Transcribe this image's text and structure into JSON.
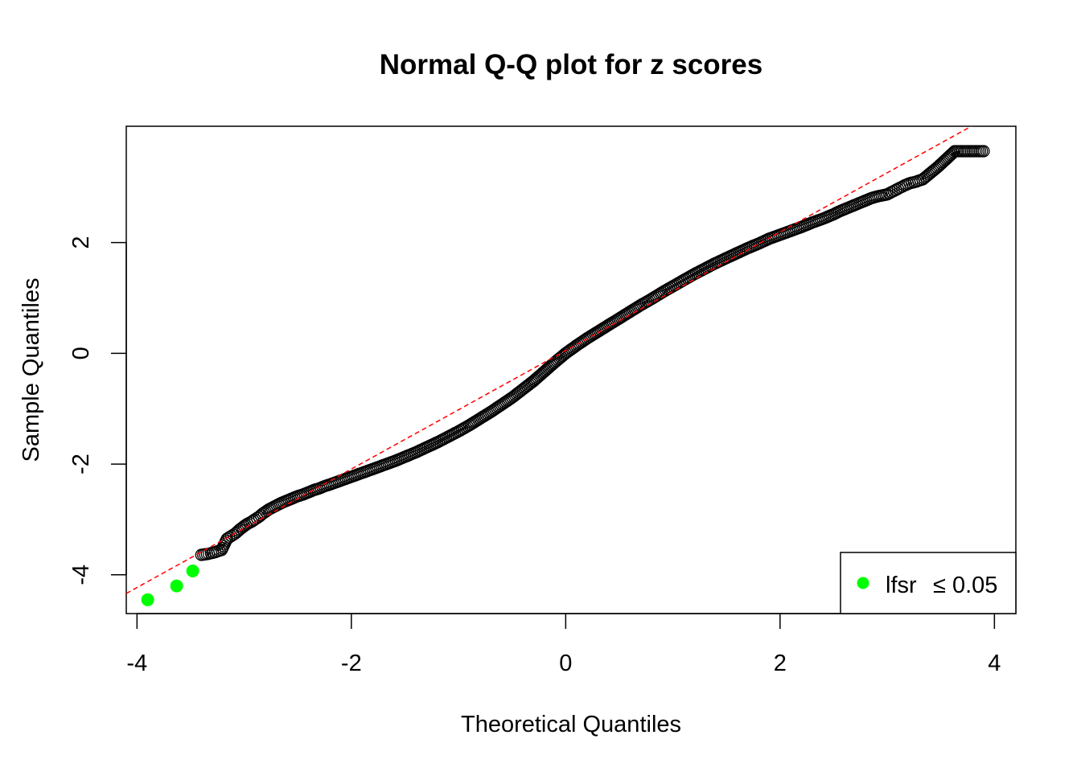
{
  "chart_data": {
    "type": "scatter",
    "title": "Normal Q-Q plot for z scores",
    "xlabel": "Theoretical Quantiles",
    "ylabel": "Sample Quantiles",
    "xlim": [
      -4.1,
      4.2
    ],
    "ylim": [
      -4.7,
      4.1
    ],
    "x_ticks": [
      -4,
      -2,
      0,
      2,
      4
    ],
    "y_ticks": [
      -4,
      -2,
      0,
      2
    ],
    "x_tick_labels": [
      "-4",
      "-2",
      "0",
      "2",
      "4"
    ],
    "y_tick_labels": [
      "-4",
      "-2",
      "0",
      "2"
    ],
    "reference_line": {
      "intercept": 0.05,
      "slope": 1.07,
      "color": "#ff0000",
      "style": "dashed"
    },
    "series": [
      {
        "marker": "open-circle",
        "color": "#000000",
        "points": [
          [
            -3.4,
            -3.64
          ],
          [
            -3.33,
            -3.62
          ],
          [
            -3.27,
            -3.59
          ],
          [
            -3.21,
            -3.55
          ],
          [
            -3.16,
            -3.35
          ],
          [
            -3.12,
            -3.3
          ],
          [
            -3.08,
            -3.25
          ],
          [
            -3.04,
            -3.18
          ],
          [
            -3.0,
            -3.12
          ],
          [
            -2.97,
            -3.08
          ],
          [
            -2.93,
            -3.04
          ],
          [
            -2.9,
            -3.0
          ],
          [
            -2.86,
            -2.95
          ],
          [
            -2.83,
            -2.9
          ],
          [
            -2.8,
            -2.86
          ],
          [
            -2.77,
            -2.82
          ],
          [
            -2.74,
            -2.79
          ],
          [
            -2.71,
            -2.76
          ],
          [
            -2.68,
            -2.73
          ],
          [
            -2.65,
            -2.7
          ],
          [
            -2.6,
            -2.66
          ],
          [
            -2.55,
            -2.62
          ],
          [
            -2.5,
            -2.58
          ],
          [
            -2.45,
            -2.55
          ],
          [
            -2.4,
            -2.51
          ],
          [
            -2.35,
            -2.47
          ],
          [
            -2.3,
            -2.44
          ],
          [
            -2.25,
            -2.4
          ],
          [
            -2.2,
            -2.37
          ],
          [
            -2.1,
            -2.3
          ],
          [
            -2.0,
            -2.23
          ],
          [
            -1.9,
            -2.16
          ],
          [
            -1.8,
            -2.09
          ],
          [
            -1.7,
            -2.02
          ],
          [
            -1.6,
            -1.95
          ],
          [
            -1.5,
            -1.87
          ],
          [
            -1.4,
            -1.79
          ],
          [
            -1.3,
            -1.7
          ],
          [
            -1.2,
            -1.61
          ],
          [
            -1.1,
            -1.51
          ],
          [
            -1.0,
            -1.41
          ],
          [
            -0.9,
            -1.3
          ],
          [
            -0.8,
            -1.18
          ],
          [
            -0.7,
            -1.06
          ],
          [
            -0.6,
            -0.93
          ],
          [
            -0.5,
            -0.8
          ],
          [
            -0.4,
            -0.65
          ],
          [
            -0.3,
            -0.5
          ],
          [
            -0.2,
            -0.33
          ],
          [
            -0.1,
            -0.16
          ],
          [
            0.0,
            0.0
          ],
          [
            0.1,
            0.14
          ],
          [
            0.2,
            0.27
          ],
          [
            0.3,
            0.39
          ],
          [
            0.4,
            0.51
          ],
          [
            0.5,
            0.63
          ],
          [
            0.6,
            0.75
          ],
          [
            0.7,
            0.87
          ],
          [
            0.8,
            0.98
          ],
          [
            0.9,
            1.1
          ],
          [
            1.0,
            1.21
          ],
          [
            1.1,
            1.32
          ],
          [
            1.2,
            1.43
          ],
          [
            1.3,
            1.53
          ],
          [
            1.4,
            1.63
          ],
          [
            1.5,
            1.72
          ],
          [
            1.6,
            1.81
          ],
          [
            1.7,
            1.9
          ],
          [
            1.8,
            1.98
          ],
          [
            1.9,
            2.07
          ],
          [
            2.0,
            2.14
          ],
          [
            2.1,
            2.21
          ],
          [
            2.2,
            2.28
          ],
          [
            2.3,
            2.36
          ],
          [
            2.4,
            2.43
          ],
          [
            2.5,
            2.51
          ],
          [
            2.55,
            2.56
          ],
          [
            2.6,
            2.6
          ],
          [
            2.65,
            2.64
          ],
          [
            2.7,
            2.68
          ],
          [
            2.75,
            2.72
          ],
          [
            2.8,
            2.76
          ],
          [
            2.85,
            2.8
          ],
          [
            2.9,
            2.83
          ],
          [
            2.95,
            2.85
          ],
          [
            3.0,
            2.87
          ],
          [
            3.04,
            2.91
          ],
          [
            3.08,
            2.95
          ],
          [
            3.12,
            2.99
          ],
          [
            3.16,
            3.03
          ],
          [
            3.21,
            3.07
          ],
          [
            3.27,
            3.1
          ],
          [
            3.33,
            3.14
          ],
          [
            3.4,
            3.25
          ],
          [
            3.48,
            3.38
          ],
          [
            3.63,
            3.65
          ],
          [
            3.9,
            3.65
          ]
        ]
      },
      {
        "marker": "filled-circle",
        "color": "#00ff00",
        "legend": true,
        "points": [
          [
            -3.9,
            -4.45
          ],
          [
            -3.63,
            -4.2
          ],
          [
            -3.48,
            -3.93
          ]
        ]
      }
    ],
    "legend": {
      "position": "bottom-right",
      "label": "lfsr",
      "condition": "≤ 0.05"
    }
  }
}
